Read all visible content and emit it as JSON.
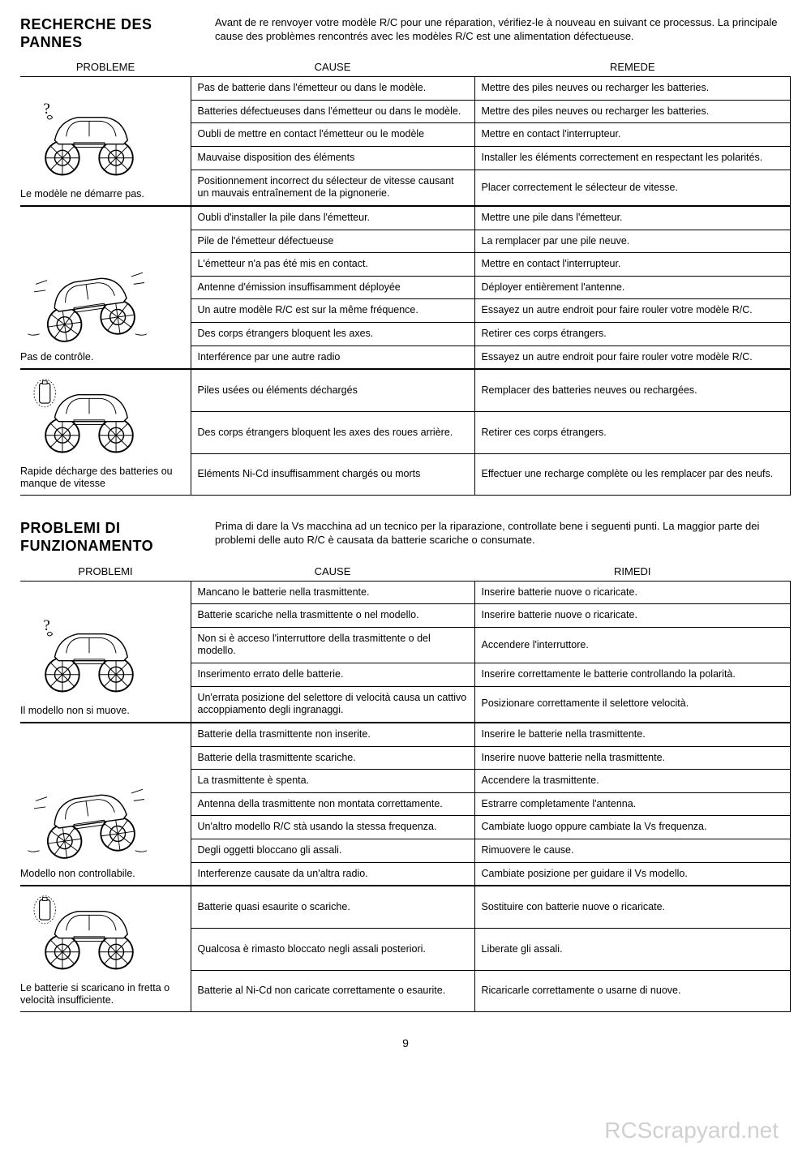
{
  "page_number": "9",
  "watermark": "RCScrapyard.net",
  "sections": [
    {
      "title": "RECHERCHE DES PANNES",
      "intro": "Avant de re renvoyer votre modèle R/C pour une réparation, vérifiez-le à nouveau en suivant ce processus. La principale cause des problèmes rencontrés avec les modèles R/C est une alimentation défectueuse.",
      "headers": {
        "problem": "PROBLEME",
        "cause": "CAUSE",
        "remedy": "REMEDE"
      },
      "groups": [
        {
          "caption": "Le modèle ne démarre pas.",
          "illus": "question",
          "rows": [
            {
              "cause": "Pas de batterie dans l'émetteur ou dans le modèle.",
              "remedy": "Mettre des piles neuves ou recharger les batteries."
            },
            {
              "cause": "Batteries défectueuses dans l'émetteur ou dans le modèle.",
              "remedy": "Mettre des piles neuves ou recharger les batteries."
            },
            {
              "cause": "Oubli de mettre en contact l'émetteur ou le modèle",
              "remedy": "Mettre en contact l'interrupteur."
            },
            {
              "cause": "Mauvaise disposition des éléments",
              "remedy": "Installer les éléments correctement en respectant les polarités."
            },
            {
              "cause": "Positionnement incorrect du sélecteur de vitesse causant un mauvais entraînement de la pignonerie.",
              "remedy": "Placer correctement le sélecteur de vitesse."
            }
          ]
        },
        {
          "caption": "Pas de contrôle.",
          "illus": "wild",
          "rows": [
            {
              "cause": "Oubli d'installer la pile dans l'émetteur.",
              "remedy": "Mettre une pile dans l'émetteur."
            },
            {
              "cause": "Pile de l'émetteur défectueuse",
              "remedy": "La remplacer par une pile neuve."
            },
            {
              "cause": "L'émetteur n'a pas été mis en contact.",
              "remedy": "Mettre en contact l'interrupteur."
            },
            {
              "cause": "Antenne d'émission insuffisamment déployée",
              "remedy": "Déployer entièrement l'antenne."
            },
            {
              "cause": "Un autre modèle R/C est sur la même fréquence.",
              "remedy": "Essayez un autre endroit pour faire rouler votre modèle R/C."
            },
            {
              "cause": "Des corps étrangers bloquent les axes.",
              "remedy": "Retirer ces corps étrangers."
            },
            {
              "cause": "Interférence par une autre radio",
              "remedy": "Essayez un autre endroit pour faire rouler votre modèle R/C."
            }
          ]
        },
        {
          "caption": "Rapide décharge des batteries ou manque de vitesse",
          "illus": "battery",
          "rows": [
            {
              "cause": "Piles usées ou éléments déchargés",
              "remedy": "Remplacer des batteries neuves ou rechargées."
            },
            {
              "cause": "Des corps étrangers bloquent les axes des roues arrière.",
              "remedy": "Retirer ces corps étrangers."
            },
            {
              "cause": "Eléments Ni-Cd insuffisamment chargés ou morts",
              "remedy": "Effectuer une recharge complète ou les remplacer par des neufs."
            }
          ]
        }
      ]
    },
    {
      "title": "PROBLEMI DI FUNZIONAMENTO",
      "intro": "Prima di dare la Vs macchina ad un tecnico per la riparazione, controllate bene i seguenti punti. La maggior parte dei problemi delle auto R/C è causata da batterie scariche o consumate.",
      "headers": {
        "problem": "PROBLEMI",
        "cause": "CAUSE",
        "remedy": "RIMEDI"
      },
      "groups": [
        {
          "caption": "Il modello non si muove.",
          "illus": "question",
          "rows": [
            {
              "cause": "Mancano le batterie nella trasmittente.",
              "remedy": "Inserire batterie nuove o ricaricate."
            },
            {
              "cause": "Batterie scariche nella trasmittente o nel modello.",
              "remedy": "Inserire batterie nuove o ricaricate."
            },
            {
              "cause": "Non si è acceso l'interruttore della trasmittente o del modello.",
              "remedy": "Accendere l'interruttore."
            },
            {
              "cause": "Inserimento errato delle batterie.",
              "remedy": "Inserire correttamente le batterie controllando la polarità."
            },
            {
              "cause": "Un'errata posizione del selettore di velocità causa un cattivo accoppiamento degli ingranaggi.",
              "remedy": "Posizionare correttamente il selettore velocità."
            }
          ]
        },
        {
          "caption": "Modello non controllabile.",
          "illus": "wild",
          "rows": [
            {
              "cause": "Batterie della trasmittente non inserite.",
              "remedy": "Inserire le batterie nella trasmittente."
            },
            {
              "cause": "Batterie della trasmittente scariche.",
              "remedy": "Inserire nuove batterie nella trasmittente."
            },
            {
              "cause": "La trasmittente è spenta.",
              "remedy": "Accendere la trasmittente."
            },
            {
              "cause": "Antenna della trasmittente non montata correttamente.",
              "remedy": "Estrarre completamente l'antenna."
            },
            {
              "cause": "Un'altro modello R/C stà usando la stessa frequenza.",
              "remedy": "Cambiate luogo oppure cambiate la Vs frequenza."
            },
            {
              "cause": "Degli oggetti bloccano gli assali.",
              "remedy": "Rimuovere le cause."
            },
            {
              "cause": "Interferenze causate da un'altra radio.",
              "remedy": "Cambiate posizione per guidare il Vs modello."
            }
          ]
        },
        {
          "caption": "Le batterie si scaricano in fretta o velocità insufficiente.",
          "illus": "battery",
          "rows": [
            {
              "cause": "Batterie quasi esaurite o scariche.",
              "remedy": "Sostituire con batterie nuove o ricaricate."
            },
            {
              "cause": "Qualcosa è rimasto bloccato negli assali posteriori.",
              "remedy": "Liberate gli assali."
            },
            {
              "cause": "Batterie al Ni-Cd non caricate correttamente o esaurite.",
              "remedy": "Ricaricarle correttamente o usarne di nuove."
            }
          ]
        }
      ]
    }
  ]
}
